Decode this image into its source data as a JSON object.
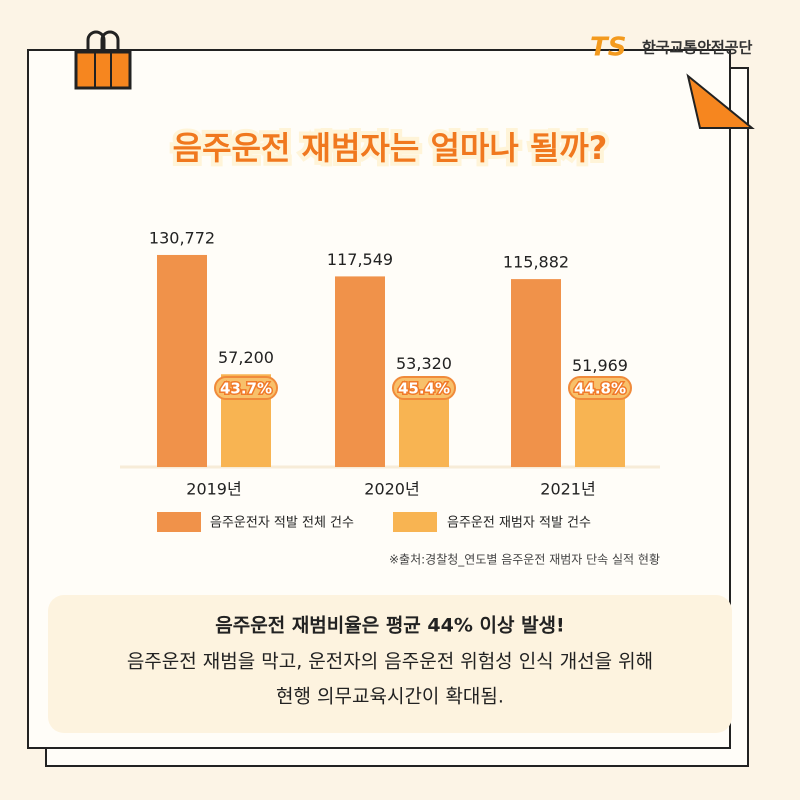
{
  "logo": {
    "mark": "TS",
    "name": "한국교통안전공단"
  },
  "chart_data": {
    "type": "bar",
    "title": "음주운전 재범자는 얼마나 될까?",
    "categories": [
      "2019년",
      "2020년",
      "2021년"
    ],
    "series": [
      {
        "name": "음주운전자 적발 전체 건수",
        "color": "#f0924a",
        "values": [
          130772,
          117549,
          115882
        ],
        "value_labels": [
          "130,772",
          "117,549",
          "115,882"
        ]
      },
      {
        "name": "음주운전 재범자 적발 건수",
        "color": "#f8b452",
        "values": [
          57200,
          53320,
          51969
        ],
        "value_labels": [
          "57,200",
          "53,320",
          "51,969"
        ]
      }
    ],
    "annotations": [
      "43.7%",
      "45.4%",
      "44.8%"
    ],
    "ylim": [
      0,
      140000
    ],
    "source": "※출처:경찰청_연도별 음주운전 재범자 단속 실적 현황"
  },
  "summary": {
    "headline": "음주운전 재범비율은 평균 44% 이상 발생!",
    "lines": [
      "음주운전 재범을 막고, 운전자의 음주운전 위험성 인식 개선을 위해",
      "현행 의무교육시간이 확대됨."
    ]
  }
}
